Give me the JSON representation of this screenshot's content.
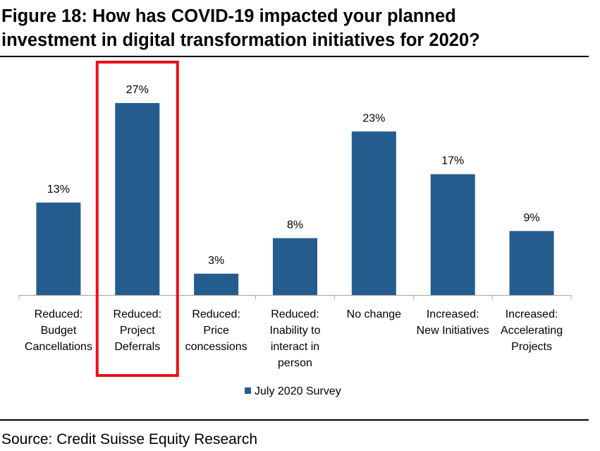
{
  "title_line1": "Figure 18: How has COVID-19 impacted your planned",
  "title_line2": "investment in digital transformation initiatives for 2020?",
  "source": "Source: Credit Suisse Equity Research",
  "colors": {
    "bar": "#255C8E",
    "highlight_box": "#E8101A",
    "axis": "#a6a6a6"
  },
  "chart_data": {
    "type": "bar",
    "categories": [
      [
        "Reduced:",
        "Budget",
        "Cancellations"
      ],
      [
        "Reduced:",
        "Project",
        "Deferrals"
      ],
      [
        "Reduced:",
        "Price",
        "concessions"
      ],
      [
        "Reduced:",
        "Inability to",
        "interact in",
        "person"
      ],
      [
        "No change"
      ],
      [
        "Increased:",
        "New Initiatives"
      ],
      [
        "Increased:",
        "Accelerating",
        "Projects"
      ]
    ],
    "series": [
      {
        "name": "July 2020 Survey",
        "values": [
          13,
          27,
          3,
          8,
          23,
          17,
          9
        ]
      }
    ],
    "data_labels": [
      "13%",
      "27%",
      "3%",
      "8%",
      "23%",
      "17%",
      "9%"
    ],
    "ylim": [
      0,
      30
    ],
    "grid": false,
    "legend": "bottom",
    "highlighted_category_index": 1
  }
}
